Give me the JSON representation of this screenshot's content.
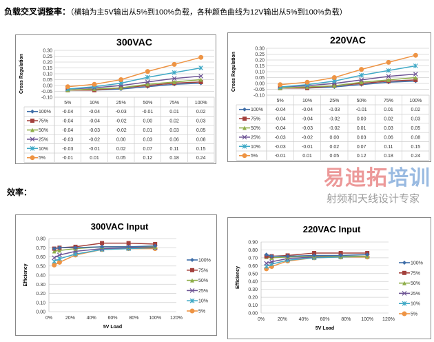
{
  "heading_cross": {
    "label": "负载交叉调整率：",
    "note": "（横轴为主5V输出从5%到100%负载，各种颜色曲线为12V输出从5%到100%负载）"
  },
  "heading_eff": {
    "label": "效率："
  },
  "colors": {
    "100%": "#3f6ea8",
    "75%": "#a3403c",
    "50%": "#8fae4a",
    "25%": "#6e5595",
    "10%": "#40a9c6",
    "5%": "#ee9444"
  },
  "markers": {
    "100%": "diamond",
    "75%": "square",
    "50%": "triangle",
    "25%": "x",
    "10%": "asterisk",
    "5%": "circle"
  },
  "watermark": {
    "main": "易迪拓培训",
    "sub": "射频和天线设计专家"
  },
  "chart_data": [
    {
      "type": "line-with-data-table",
      "title": "300VAC",
      "ylabel": "Cross Regulation",
      "ylim": [
        -0.1,
        0.3
      ],
      "yticks": [
        "0.30",
        "0.25",
        "0.20",
        "0.15",
        "0.10",
        "0.05",
        "0.00",
        "-0.05",
        "-0.10"
      ],
      "categories": [
        "5%",
        "10%",
        "25%",
        "50%",
        "75%",
        "100%"
      ],
      "grid": true,
      "series": [
        {
          "name": "100%",
          "values": [
            "-0.04",
            "-0.04",
            "-0.03",
            "-0.01",
            "0.01",
            "0.02"
          ]
        },
        {
          "name": "75%",
          "values": [
            "-0.04",
            "-0.04",
            "-0.02",
            "0.00",
            "0.02",
            "0.03"
          ]
        },
        {
          "name": "50%",
          "values": [
            "-0.04",
            "-0.03",
            "-0.02",
            "0.01",
            "0.03",
            "0.05"
          ]
        },
        {
          "name": "25%",
          "values": [
            "-0.03",
            "-0.02",
            "0.00",
            "0.03",
            "0.06",
            "0.08"
          ]
        },
        {
          "name": "10%",
          "values": [
            "-0.03",
            "-0.01",
            "0.02",
            "0.07",
            "0.11",
            "0.15"
          ]
        },
        {
          "name": "5%",
          "values": [
            "-0.01",
            "0.01",
            "0.05",
            "0.12",
            "0.18",
            "0.24"
          ]
        }
      ]
    },
    {
      "type": "line-with-data-table",
      "title": "220VAC",
      "ylabel": "Cross Regulation",
      "ylim": [
        -0.1,
        0.3
      ],
      "yticks": [
        "0.30",
        "0.25",
        "0.20",
        "0.15",
        "0.10",
        "0.05",
        "0.00",
        "-0.05",
        "-0.10"
      ],
      "categories": [
        "5%",
        "10%",
        "25%",
        "50%",
        "75%",
        "100%"
      ],
      "grid": true,
      "series": [
        {
          "name": "100%",
          "values": [
            "-0.04",
            "-0.04",
            "-0.03",
            "-0.01",
            "0.01",
            "0.02"
          ]
        },
        {
          "name": "75%",
          "values": [
            "-0.04",
            "-0.04",
            "-0.02",
            "0.00",
            "0.02",
            "0.03"
          ]
        },
        {
          "name": "50%",
          "values": [
            "-0.04",
            "-0.03",
            "-0.02",
            "0.01",
            "0.03",
            "0.05"
          ]
        },
        {
          "name": "25%",
          "values": [
            "-0.03",
            "-0.02",
            "0.00",
            "0.03",
            "0.06",
            "0.08"
          ]
        },
        {
          "name": "10%",
          "values": [
            "-0.03",
            "-0.01",
            "0.02",
            "0.07",
            "0.11",
            "0.15"
          ]
        },
        {
          "name": "5%",
          "values": [
            "-0.01",
            "0.01",
            "0.05",
            "0.12",
            "0.18",
            "0.24"
          ]
        }
      ]
    },
    {
      "type": "scatter-line",
      "title": "300VAC Input",
      "xlabel": "5V Load",
      "ylabel": "Efficiency",
      "xlim": [
        0,
        120
      ],
      "ylim": [
        0,
        0.8
      ],
      "xticks": [
        "0%",
        "20%",
        "40%",
        "60%",
        "80%",
        "100%",
        "120%"
      ],
      "yticks": [
        "0.80",
        "0.70",
        "0.60",
        "0.50",
        "0.40",
        "0.30",
        "0.20",
        "0.10",
        "0.00"
      ],
      "x": [
        5,
        10,
        25,
        50,
        75,
        100
      ],
      "grid": true,
      "legend": "right",
      "series": [
        {
          "name": "100%",
          "values": [
            0.69,
            0.7,
            0.7,
            0.71,
            0.71,
            0.72
          ]
        },
        {
          "name": "75%",
          "values": [
            0.69,
            0.7,
            0.71,
            0.75,
            0.75,
            0.74
          ]
        },
        {
          "name": "50%",
          "values": [
            0.66,
            0.67,
            0.69,
            0.71,
            0.71,
            0.71
          ]
        },
        {
          "name": "25%",
          "values": [
            0.59,
            0.62,
            0.66,
            0.69,
            0.7,
            0.7
          ]
        },
        {
          "name": "10%",
          "values": [
            0.55,
            0.58,
            0.63,
            0.68,
            0.69,
            0.7
          ]
        },
        {
          "name": "5%",
          "values": [
            0.51,
            0.54,
            0.62,
            0.68,
            0.69,
            0.69
          ]
        }
      ]
    },
    {
      "type": "scatter-line",
      "title": "220VAC Input",
      "xlabel": "5V Load",
      "ylabel": "Efficiency",
      "xlim": [
        0,
        120
      ],
      "ylim": [
        0,
        0.9
      ],
      "xticks": [
        "0%",
        "20%",
        "40%",
        "60%",
        "80%",
        "100%",
        "120%"
      ],
      "yticks": [
        "0.90",
        "0.80",
        "0.70",
        "0.60",
        "0.50",
        "0.40",
        "0.30",
        "0.20",
        "0.10",
        "0.00"
      ],
      "x": [
        5,
        10,
        25,
        50,
        75,
        100
      ],
      "grid": true,
      "legend": "right",
      "series": [
        {
          "name": "100%",
          "values": [
            0.74,
            0.72,
            0.72,
            0.73,
            0.73,
            0.74
          ]
        },
        {
          "name": "75%",
          "values": [
            0.72,
            0.72,
            0.73,
            0.76,
            0.76,
            0.76
          ]
        },
        {
          "name": "50%",
          "values": [
            0.71,
            0.7,
            0.71,
            0.72,
            0.72,
            0.72
          ]
        },
        {
          "name": "25%",
          "values": [
            0.63,
            0.65,
            0.69,
            0.71,
            0.72,
            0.72
          ]
        },
        {
          "name": "10%",
          "values": [
            0.59,
            0.62,
            0.67,
            0.7,
            0.71,
            0.72
          ]
        },
        {
          "name": "5%",
          "values": [
            0.56,
            0.59,
            0.66,
            0.7,
            0.71,
            0.71
          ]
        }
      ]
    }
  ]
}
